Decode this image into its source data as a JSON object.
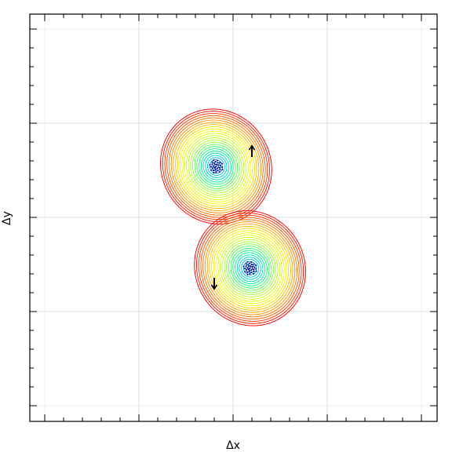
{
  "chart_data": {
    "type": "scatter",
    "title": "",
    "xlabel": "Δx",
    "ylabel": "Δy",
    "xlim": [
      -1,
      1
    ],
    "ylim": [
      -1,
      1
    ],
    "grid": true,
    "legend": "none",
    "color_scale": [
      "#00008b",
      "#00bfff",
      "#00ff7f",
      "#adff2f",
      "#ffff00",
      "#ff8c00",
      "#ff0000"
    ],
    "series": [
      {
        "kind": "vortex",
        "center": [
          -0.09,
          0.27
        ],
        "radii": [
          0.29,
          0.31
        ],
        "rotation": -30,
        "direction": "counterclockwise",
        "marker": {
          "x": 0.1,
          "y": 0.35,
          "dir": "up"
        }
      },
      {
        "kind": "vortex",
        "center": [
          0.09,
          -0.27
        ],
        "radii": [
          0.29,
          0.31
        ],
        "rotation": -30,
        "direction": "counterclockwise",
        "marker": {
          "x": -0.1,
          "y": -0.35,
          "dir": "down"
        }
      }
    ]
  }
}
